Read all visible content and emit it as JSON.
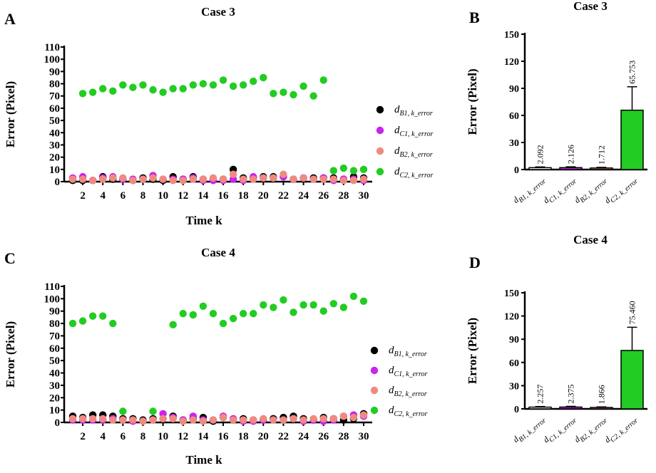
{
  "panels": {
    "A": "A",
    "B": "B",
    "C": "C",
    "D": "D"
  },
  "chart_data": [
    {
      "id": "A",
      "type": "scatter",
      "title": "Case 3",
      "xlabel": "Time k",
      "ylabel": "Error (Pixel)",
      "xlim": [
        1,
        30
      ],
      "ylim": [
        0,
        110
      ],
      "xticks": [
        2,
        4,
        6,
        8,
        10,
        12,
        14,
        16,
        18,
        20,
        22,
        24,
        26,
        28,
        30
      ],
      "yticks": [
        0,
        10,
        20,
        30,
        40,
        50,
        60,
        70,
        80,
        90,
        100,
        110
      ],
      "legend_position": "right",
      "series": [
        {
          "name": "d_B1,k_error",
          "sym": "d",
          "sub": "B1, k_error",
          "color": "#000000",
          "x": [
            1,
            2,
            3,
            4,
            5,
            6,
            7,
            8,
            9,
            10,
            11,
            12,
            13,
            14,
            15,
            16,
            17,
            18,
            19,
            20,
            21,
            22,
            23,
            24,
            25,
            26,
            27,
            28,
            29,
            30
          ],
          "y": [
            1,
            1,
            1,
            4,
            2,
            2,
            1,
            3,
            2,
            1,
            4,
            2,
            4,
            2,
            2,
            2,
            10,
            3,
            3,
            4,
            4,
            4,
            2,
            3,
            3,
            3,
            3,
            2,
            4,
            3
          ]
        },
        {
          "name": "d_C1,k_error",
          "sym": "d",
          "sub": "C1, k_error",
          "color": "#cc22ee",
          "x": [
            1,
            2,
            3,
            4,
            5,
            6,
            7,
            8,
            9,
            10,
            11,
            12,
            13,
            14,
            15,
            16,
            17,
            18,
            19,
            20,
            21,
            22,
            23,
            24,
            25,
            26,
            27,
            28,
            29,
            30
          ],
          "y": [
            3,
            4,
            1,
            3,
            4,
            2,
            2,
            2,
            5,
            2,
            2,
            2,
            3,
            1,
            1,
            1,
            2,
            1,
            4,
            3,
            3,
            4,
            2,
            3,
            2,
            3,
            1,
            2,
            2,
            1
          ]
        },
        {
          "name": "d_B2,k_error",
          "sym": "d",
          "sub": "B2, k_error",
          "color": "#f08a80",
          "x": [
            1,
            2,
            3,
            4,
            5,
            6,
            7,
            8,
            9,
            10,
            11,
            12,
            13,
            14,
            15,
            16,
            17,
            18,
            19,
            20,
            21,
            22,
            23,
            24,
            25,
            26,
            27,
            28,
            29,
            30
          ],
          "y": [
            2,
            2,
            1,
            2,
            3,
            3,
            1,
            2,
            3,
            2,
            1,
            1,
            2,
            2,
            3,
            2,
            6,
            2,
            2,
            3,
            3,
            6,
            2,
            3,
            2,
            2,
            2,
            1,
            1,
            2
          ]
        },
        {
          "name": "d_C2,k_error",
          "sym": "d",
          "sub": "C2, k_error",
          "color": "#22cc22",
          "x": [
            2,
            3,
            4,
            5,
            6,
            7,
            8,
            9,
            10,
            11,
            12,
            13,
            14,
            15,
            16,
            17,
            18,
            19,
            20,
            21,
            22,
            23,
            24,
            25,
            26,
            27,
            28,
            29,
            30
          ],
          "y": [
            72,
            73,
            76,
            74,
            79,
            77,
            79,
            75,
            73,
            76,
            76,
            79,
            80,
            79,
            83,
            78,
            79,
            82,
            85,
            72,
            73,
            71,
            78,
            70,
            83,
            9,
            11,
            9,
            10
          ]
        }
      ]
    },
    {
      "id": "B",
      "type": "bar",
      "title": "Case 3",
      "ylabel": "Error (Pixel)",
      "ylim": [
        0,
        150
      ],
      "yticks": [
        0,
        30,
        60,
        90,
        120,
        150
      ],
      "categories": [
        "d_B1,k_error",
        "d_C1,k_error",
        "d_B2,k_error",
        "d_C2,k_error"
      ],
      "cat_labels": [
        {
          "sym": "d",
          "sub": "B1, k_error"
        },
        {
          "sym": "d",
          "sub": "C1, k_error"
        },
        {
          "sym": "d",
          "sub": "B2, k_error"
        },
        {
          "sym": "d",
          "sub": "C2, k_error"
        }
      ],
      "values": [
        2.092,
        2.126,
        1.712,
        65.753
      ],
      "labels": [
        "2.092",
        "2.126",
        "1.712",
        "65.753"
      ],
      "errors": [
        0.8,
        0.9,
        0.7,
        26
      ],
      "colors": [
        "#ffffff",
        "#cc22ee",
        "#f08a80",
        "#22cc22"
      ]
    },
    {
      "id": "C",
      "type": "scatter",
      "title": "Case 4",
      "xlabel": "Time k",
      "ylabel": "Error (Pixel)",
      "xlim": [
        1,
        30
      ],
      "ylim": [
        0,
        110
      ],
      "xticks": [
        2,
        4,
        6,
        8,
        10,
        12,
        14,
        16,
        18,
        20,
        22,
        24,
        26,
        28,
        30
      ],
      "yticks": [
        0,
        10,
        20,
        30,
        40,
        50,
        60,
        70,
        80,
        90,
        100,
        110
      ],
      "legend_position": "right",
      "series": [
        {
          "name": "d_B1,k_error",
          "sym": "d",
          "sub": "B1, k_error",
          "color": "#000000",
          "x": [
            1,
            2,
            3,
            4,
            5,
            6,
            7,
            8,
            9,
            10,
            11,
            12,
            13,
            14,
            15,
            16,
            17,
            18,
            19,
            20,
            21,
            22,
            23,
            24,
            25,
            26,
            27,
            28,
            29,
            30
          ],
          "y": [
            5,
            4,
            6,
            6,
            5,
            3,
            3,
            2,
            3,
            3,
            5,
            2,
            3,
            4,
            1,
            4,
            2,
            3,
            2,
            2,
            3,
            4,
            5,
            3,
            2,
            4,
            3,
            2,
            3,
            7
          ]
        },
        {
          "name": "d_C1,k_error",
          "sym": "d",
          "sub": "C1, k_error",
          "color": "#cc22ee",
          "x": [
            1,
            2,
            3,
            4,
            5,
            6,
            7,
            8,
            9,
            10,
            11,
            12,
            13,
            14,
            15,
            16,
            17,
            18,
            19,
            20,
            21,
            22,
            23,
            24,
            25,
            26,
            27,
            28,
            29,
            30
          ],
          "y": [
            2,
            2,
            2,
            2,
            3,
            2,
            1,
            1,
            2,
            7,
            4,
            2,
            5,
            2,
            2,
            5,
            3,
            1,
            1,
            2,
            2,
            2,
            3,
            1,
            2,
            1,
            2,
            5,
            6,
            5
          ]
        },
        {
          "name": "d_B2,k_error",
          "sym": "d",
          "sub": "B2, k_error",
          "color": "#f08a80",
          "x": [
            1,
            2,
            3,
            4,
            5,
            6,
            7,
            8,
            9,
            10,
            11,
            12,
            13,
            14,
            15,
            16,
            17,
            18,
            19,
            20,
            21,
            22,
            23,
            24,
            25,
            26,
            27,
            28,
            29,
            30
          ],
          "y": [
            3,
            3,
            3,
            3,
            2,
            2,
            2,
            1,
            2,
            3,
            3,
            1,
            2,
            1,
            2,
            4,
            2,
            2,
            2,
            3,
            2,
            2,
            3,
            2,
            3,
            3,
            3,
            5,
            4,
            6
          ]
        },
        {
          "name": "d_C2,k_error",
          "sym": "d",
          "sub": "C2, k_error",
          "color": "#22cc22",
          "x": [
            1,
            2,
            3,
            4,
            5,
            6,
            9,
            11,
            12,
            13,
            14,
            15,
            16,
            17,
            18,
            19,
            20,
            21,
            22,
            23,
            24,
            25,
            26,
            27,
            28,
            29,
            30
          ],
          "y": [
            80,
            82,
            86,
            86,
            80,
            9,
            9,
            79,
            88,
            87,
            94,
            88,
            80,
            84,
            88,
            88,
            95,
            93,
            99,
            89,
            95,
            95,
            90,
            96,
            93,
            102,
            98
          ]
        }
      ]
    },
    {
      "id": "D",
      "type": "bar",
      "title": "Case 4",
      "ylabel": "Error (Pixel)",
      "ylim": [
        0,
        150
      ],
      "yticks": [
        0,
        30,
        60,
        90,
        120,
        150
      ],
      "categories": [
        "d_B1,k_error",
        "d_C1,k_error",
        "d_B2,k_error",
        "d_C2,k_error"
      ],
      "cat_labels": [
        {
          "sym": "d",
          "sub": "B1, k_error"
        },
        {
          "sym": "d",
          "sub": "C1, k_error"
        },
        {
          "sym": "d",
          "sub": "B2, k_error"
        },
        {
          "sym": "d",
          "sub": "C2, k_error"
        }
      ],
      "values": [
        2.257,
        2.375,
        1.866,
        75.46
      ],
      "labels": [
        "2.257",
        "2.375",
        "1.866",
        "75.460"
      ],
      "errors": [
        0.8,
        0.9,
        0.7,
        30
      ],
      "colors": [
        "#ffffff",
        "#cc22ee",
        "#f08a80",
        "#22cc22"
      ]
    }
  ]
}
